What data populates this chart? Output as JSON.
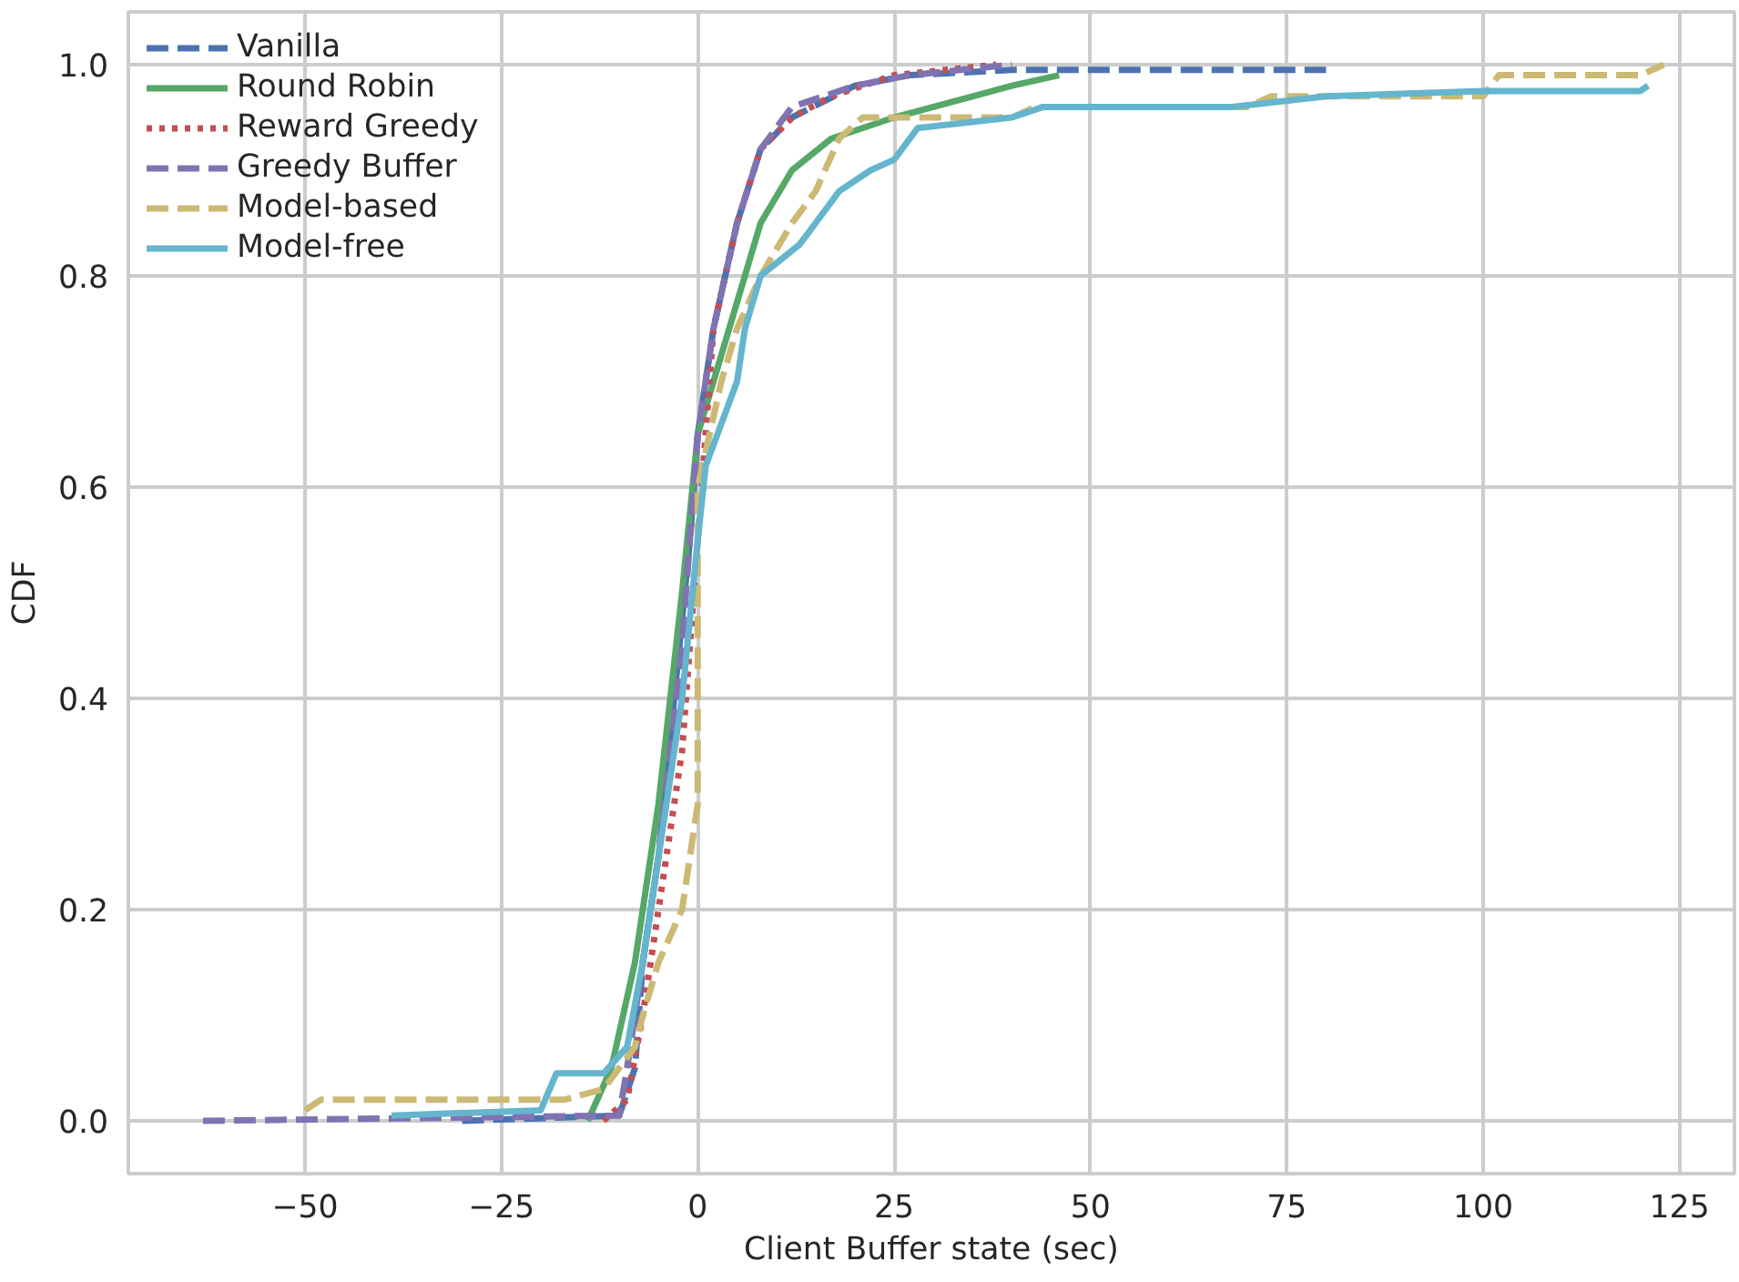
{
  "chart_data": {
    "type": "line",
    "xlabel": "Client Buffer state (sec)",
    "ylabel": "CDF",
    "xlim": [
      -72.5,
      132
    ],
    "ylim": [
      -0.05,
      1.05
    ],
    "xticks": [
      {
        "value": -50,
        "label": "−50"
      },
      {
        "value": -25,
        "label": "−25"
      },
      0,
      25,
      50,
      75,
      100,
      125
    ],
    "yticks": [
      {
        "value": 0,
        "label": "0.0"
      },
      {
        "value": 0.2,
        "label": "0.2"
      },
      {
        "value": 0.4,
        "label": "0.4"
      },
      {
        "value": 0.6,
        "label": "0.6"
      },
      {
        "value": 0.8,
        "label": "0.8"
      },
      {
        "value": 1,
        "label": "1.0"
      }
    ],
    "grid": true,
    "legend": "top left",
    "series": [
      {
        "name": "Vanilla",
        "color": "#4c72b0",
        "line_style": "dashed",
        "x": [
          -30,
          -10,
          -8,
          -7,
          -5,
          -3,
          -1,
          0,
          2,
          5,
          8,
          12,
          20,
          27,
          40,
          80
        ],
        "values": [
          0,
          0.005,
          0.05,
          0.15,
          0.25,
          0.4,
          0.55,
          0.65,
          0.75,
          0.85,
          0.92,
          0.95,
          0.98,
          0.99,
          0.995,
          0.995
        ]
      },
      {
        "name": "Round Robin",
        "color": "#55a868",
        "line_style": "solid",
        "x": [
          -14,
          -11,
          -8,
          -5,
          -2,
          0,
          2,
          4,
          6,
          8,
          12,
          17,
          25,
          35,
          40,
          46
        ],
        "values": [
          0,
          0.05,
          0.15,
          0.3,
          0.5,
          0.65,
          0.7,
          0.75,
          0.8,
          0.85,
          0.9,
          0.93,
          0.95,
          0.97,
          0.98,
          0.99
        ]
      },
      {
        "name": "Reward Greedy",
        "color": "#c44e52",
        "line_style": "dotted",
        "x": [
          -12,
          -9,
          -7,
          -5,
          -2,
          0,
          2,
          5,
          8,
          12,
          17,
          25,
          38
        ],
        "values": [
          0,
          0.02,
          0.1,
          0.2,
          0.35,
          0.55,
          0.75,
          0.85,
          0.92,
          0.95,
          0.97,
          0.99,
          1.0
        ]
      },
      {
        "name": "Greedy Buffer",
        "color": "#8172b2",
        "line_style": "dashed",
        "x": [
          -63,
          -10,
          -9,
          -7,
          -5,
          -2,
          0,
          2,
          5,
          8,
          12,
          20,
          27,
          40
        ],
        "values": [
          0,
          0.005,
          0.05,
          0.15,
          0.25,
          0.45,
          0.65,
          0.75,
          0.85,
          0.92,
          0.96,
          0.98,
          0.99,
          1.0
        ]
      },
      {
        "name": "Model-based",
        "color": "#ccb974",
        "line_style": "dashed",
        "x": [
          -50,
          -48,
          -17,
          -12,
          -8,
          -7,
          -5,
          -2,
          0,
          0,
          0,
          3,
          5,
          8,
          12,
          15,
          18,
          21,
          40,
          43,
          70,
          73,
          100,
          102,
          120,
          123
        ],
        "values": [
          0.01,
          0.02,
          0.02,
          0.03,
          0.07,
          0.1,
          0.15,
          0.2,
          0.3,
          0.4,
          0.6,
          0.7,
          0.75,
          0.8,
          0.85,
          0.88,
          0.93,
          0.95,
          0.95,
          0.96,
          0.96,
          0.97,
          0.97,
          0.99,
          0.99,
          1.0
        ]
      },
      {
        "name": "Model-free",
        "color": "#64b5cd",
        "line_style": "solid",
        "x": [
          -39,
          -20,
          -18,
          -12,
          -9,
          -7,
          -5,
          -2,
          0,
          1,
          5,
          6,
          8,
          13,
          15,
          18,
          22,
          25,
          28,
          40,
          44,
          68,
          80,
          100,
          120,
          121
        ],
        "values": [
          0.005,
          0.01,
          0.045,
          0.045,
          0.07,
          0.15,
          0.25,
          0.4,
          0.55,
          0.62,
          0.7,
          0.75,
          0.8,
          0.83,
          0.85,
          0.88,
          0.9,
          0.91,
          0.94,
          0.95,
          0.96,
          0.96,
          0.97,
          0.975,
          0.975,
          0.98
        ]
      }
    ]
  }
}
